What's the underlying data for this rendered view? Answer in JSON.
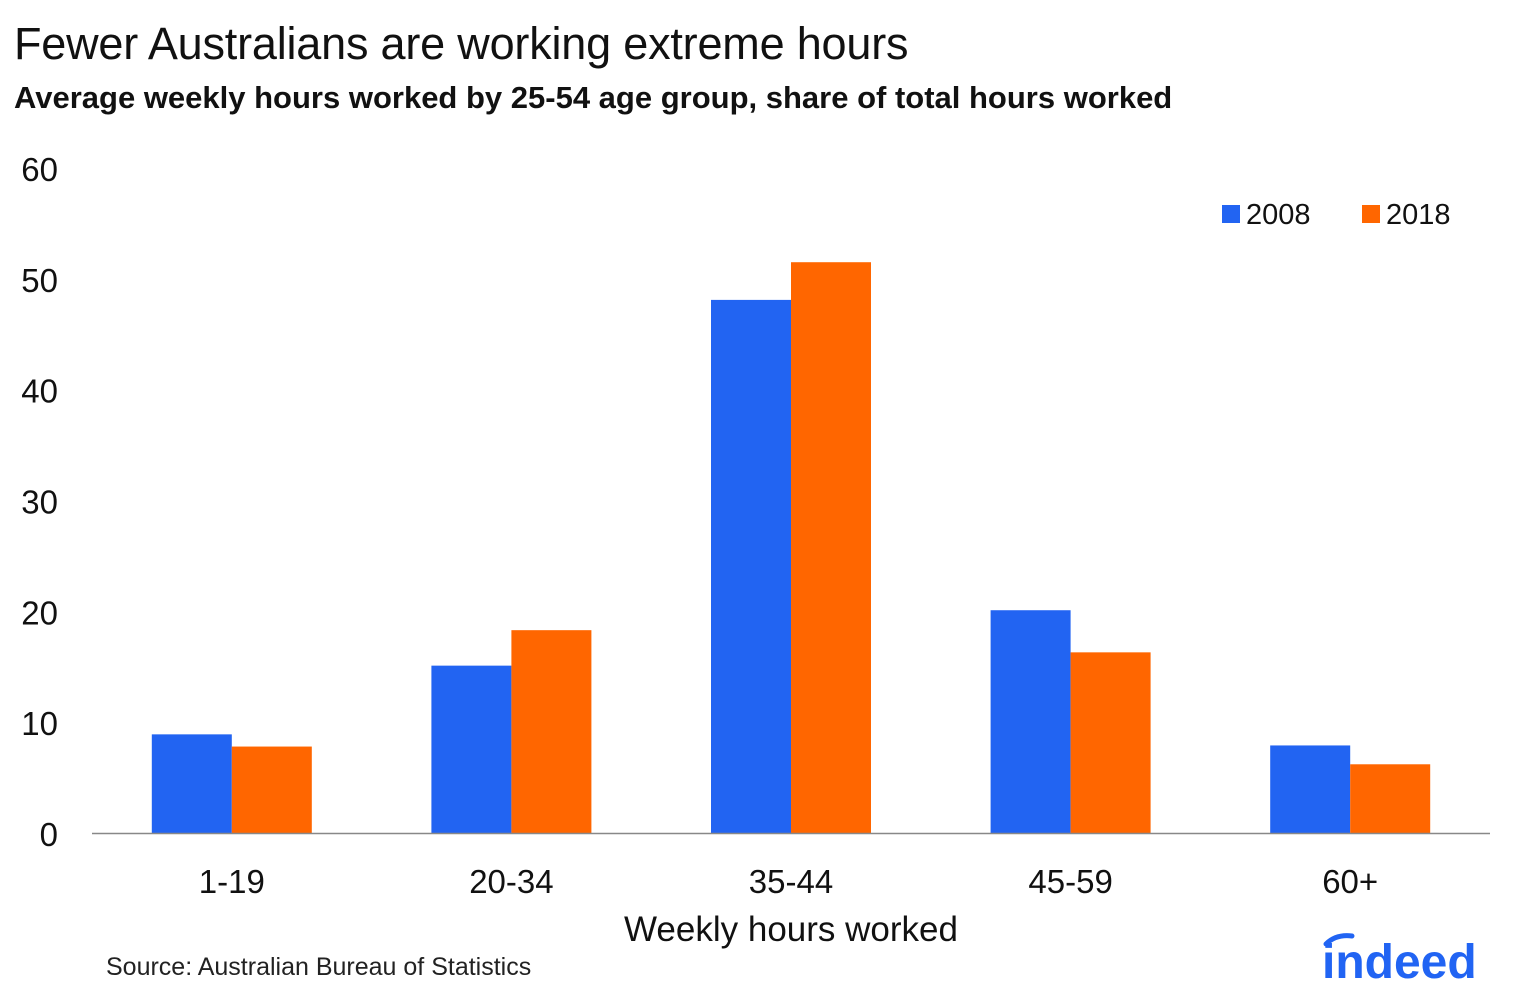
{
  "chart_data": {
    "type": "bar",
    "title": "Fewer Australians are working extreme hours",
    "subtitle": "Average weekly hours worked by 25-54 age group, share of total hours worked",
    "xlabel": "Weekly hours worked",
    "ylabel": "",
    "categories": [
      "1-19",
      "20-34",
      "35-44",
      "45-59",
      "60+"
    ],
    "series": [
      {
        "name": "2008",
        "color": "#2264f2",
        "values": [
          8.9,
          15.1,
          48.1,
          20.1,
          7.9
        ]
      },
      {
        "name": "2018",
        "color": "#ff6600",
        "values": [
          7.8,
          18.3,
          51.5,
          16.3,
          6.2
        ]
      }
    ],
    "ylim": [
      0,
      60
    ],
    "yticks": [
      0,
      10,
      20,
      30,
      40,
      50,
      60
    ],
    "grid": false,
    "legend_position": "top-right"
  },
  "source": "Source: Australian Bureau of Statistics",
  "logo": {
    "text": "indeed",
    "color": "#2164f3"
  }
}
